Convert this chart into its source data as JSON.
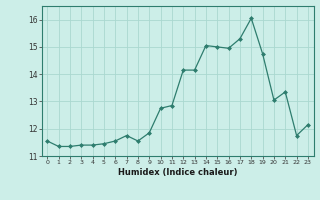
{
  "x": [
    0,
    1,
    2,
    3,
    4,
    5,
    6,
    7,
    8,
    9,
    10,
    11,
    12,
    13,
    14,
    15,
    16,
    17,
    18,
    19,
    20,
    21,
    22,
    23
  ],
  "y": [
    11.55,
    11.35,
    11.35,
    11.4,
    11.4,
    11.45,
    11.55,
    11.75,
    11.55,
    11.85,
    12.75,
    12.85,
    14.15,
    14.15,
    15.05,
    15.0,
    14.95,
    15.3,
    16.05,
    14.75,
    13.05,
    13.35,
    11.75,
    12.15
  ],
  "xlabel": "Humidex (Indice chaleur)",
  "line_color": "#2e7d6e",
  "bg_color": "#cceee8",
  "grid_color": "#aad8d0",
  "ylim": [
    11.0,
    16.5
  ],
  "xlim": [
    -0.5,
    23.5
  ],
  "yticks": [
    11,
    12,
    13,
    14,
    15,
    16
  ],
  "xticks": [
    0,
    1,
    2,
    3,
    4,
    5,
    6,
    7,
    8,
    9,
    10,
    11,
    12,
    13,
    14,
    15,
    16,
    17,
    18,
    19,
    20,
    21,
    22,
    23
  ]
}
